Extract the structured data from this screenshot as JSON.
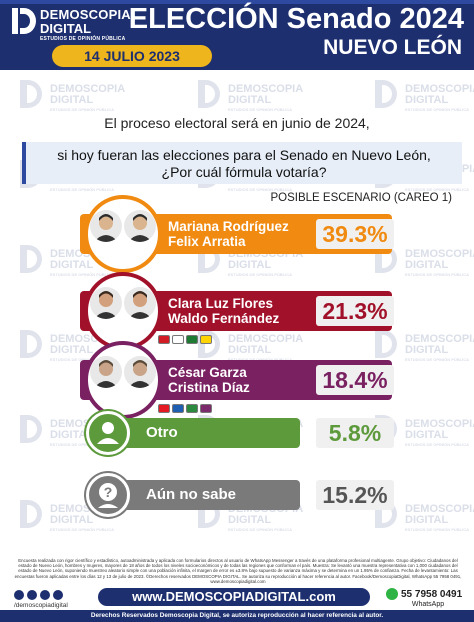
{
  "brand": {
    "name_line1": "DEMOSCOPIA",
    "name_line2": "DIGITAL",
    "tagline": "ESTUDIOS DE OPINIÓN PÚBLICA"
  },
  "header": {
    "title": "ELECCIÓN Senado 2024",
    "subtitle": "NUEVO LEÓN",
    "date": "14 JULIO 2023"
  },
  "watermark": {
    "line1": "DEMOSCOPIA",
    "line2": "DIGITAL",
    "tagline": "ESTUDIOS DE OPINIÓN PÚBLICA"
  },
  "question": {
    "intro": "El proceso electoral será en junio de 2024,",
    "text_line1": "si hoy fueran las elecciones para el Senado en Nuevo León,",
    "text_line2": "¿Por cuál fórmula votaría?",
    "scenario": "POSIBLE ESCENARIO (CAREO 1)"
  },
  "chart_data": {
    "type": "bar",
    "categories": [
      "Mariana Rodríguez / Felix Arratia",
      "Clara Luz Flores / Waldo Fernández",
      "César Garza / Cristina Díaz",
      "Otro",
      "Aún no sabe"
    ],
    "values": [
      39.3,
      21.3,
      18.4,
      5.8,
      15.2
    ],
    "unit": "%",
    "value_labels": [
      "39.3%",
      "21.3%",
      "18.4%",
      "5.8%",
      "15.2%"
    ],
    "colors": [
      "#f08a10",
      "#a1112a",
      "#7a2162",
      "#5d9a3c",
      "#7a7a7a"
    ],
    "title": "ELECCIÓN Senado 2024"
  },
  "rows": [
    {
      "line1": "Mariana Rodríguez",
      "line2": "Felix Arratia",
      "value": "39.3%",
      "color": "#f08a10",
      "value_color": "#f08a10"
    },
    {
      "line1": "Clara Luz Flores",
      "line2": "Waldo Fernández",
      "value": "21.3%",
      "color": "#a1112a",
      "value_color": "#a1112a"
    },
    {
      "line1": "César Garza",
      "line2": "Cristina Díaz",
      "value": "18.4%",
      "color": "#7a2162",
      "value_color": "#7a2162"
    },
    {
      "line1": "Otro",
      "value": "5.8%",
      "color": "#5d9a3c",
      "value_color": "#5d9a3c",
      "icon": "person-icon"
    },
    {
      "line1": "Aún no sabe",
      "value": "15.2%",
      "color": "#7a7a7a",
      "value_color": "#555555",
      "icon": "question-icon"
    }
  ],
  "footer": {
    "fine_print": "Encuesta realizada con rigor científico y estadístico, autoadministrada y aplicada con formularios directos al usuario de WhatsApp Messenger a través de una plataforma profesional multiagente. Grupo objetivo: Ciudadanos del estado de Nuevo León, hombres y mujeres, mayores de 18 años de todos los niveles socioeconómicos y de todas las regiones que conforman el país. Muestra: Se levantó una muestra representativa con 1,000 ciudadanos del estado de Nuevo León, suponiendo muestreo aleatorio simple con una población infinita, el margen de error es ±3.8% bajo supuesto de varianza máxima y se determina en un 1.95% de confianza. Fecha de levantamiento: Las encuestas fueron aplicadas entre los días 12 y 13 de julio de 2023. ©Derechos reservados DEMOSCOPIA DIGITAL. Se autoriza su reproducción al hacer referencia al autor. Facebook/DemoscopiaDigital, WhatsApp 55 7958 0491, www.demoscopiadigital.com",
    "social_handle": "/demoscopiadigital",
    "url": "www.DEMOSCOPIADIGITAL.com",
    "whatsapp_number": "55 7958 0491",
    "whatsapp_label": "WhatsApp",
    "rights": "Derechos Reservados Demoscopia Digital, se autoriza reproducción al hacer referencia al autor."
  }
}
